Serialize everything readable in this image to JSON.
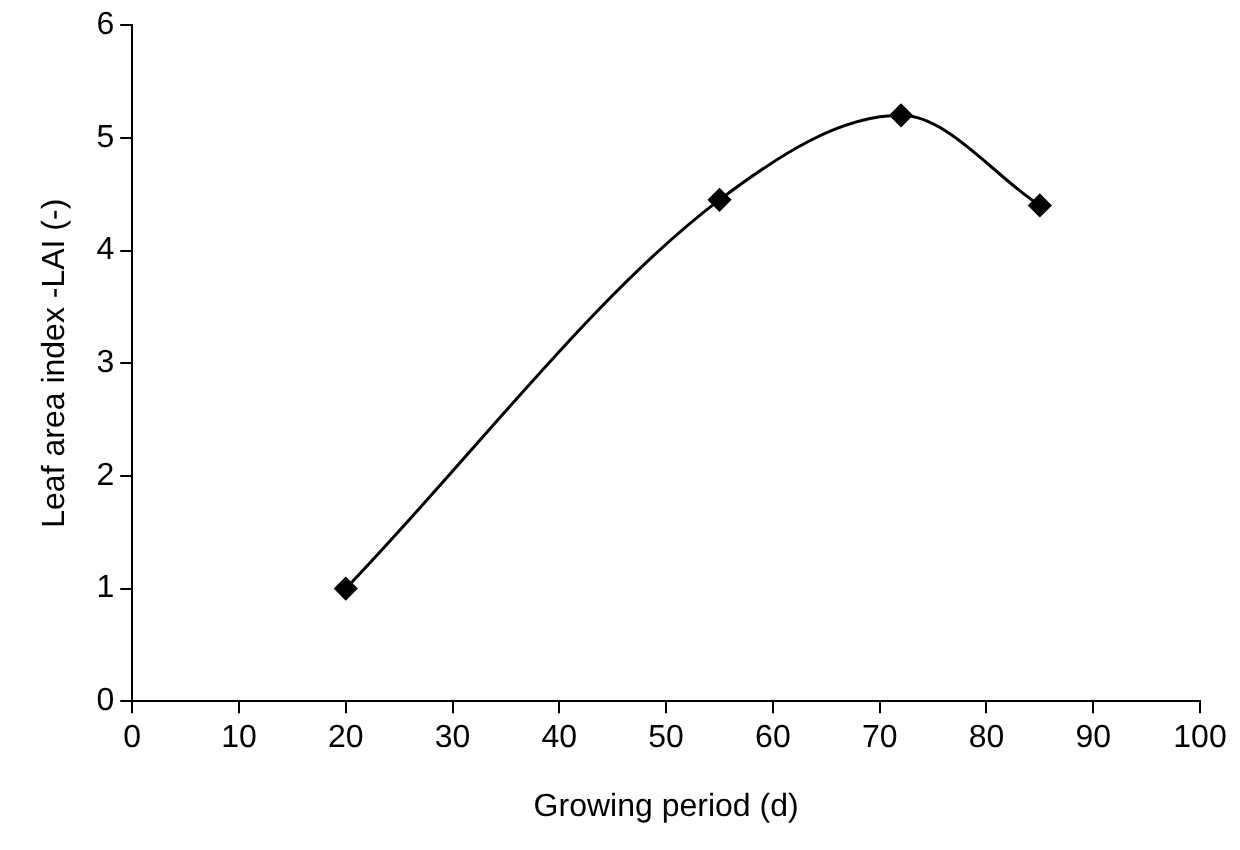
{
  "chart_data": {
    "type": "line",
    "xlabel": "Growing period (d)",
    "ylabel": "Leaf area index -LAI (-)",
    "x": [
      20,
      55,
      72,
      85
    ],
    "series": [
      {
        "color": "#000000",
        "values": [
          1,
          4.45,
          5.2,
          4.4
        ]
      }
    ],
    "xlim": [
      0,
      100
    ],
    "xticks": [
      0,
      10,
      20,
      30,
      40,
      50,
      60,
      70,
      80,
      90,
      100
    ],
    "ylim": [
      0,
      6
    ],
    "yticks": [
      0,
      1,
      2,
      3,
      4,
      5,
      6
    ],
    "grid": false,
    "legend": false,
    "marker": "diamond",
    "line_style": "solid"
  }
}
